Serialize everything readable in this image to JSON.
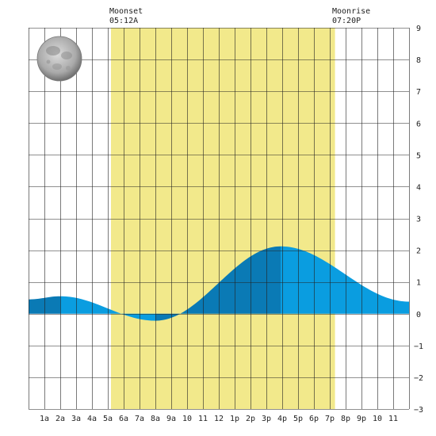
{
  "moon_events": {
    "moonset": {
      "label": "Moonset",
      "time": "05:12A",
      "hour": 5.2
    },
    "moonrise": {
      "label": "Moonrise",
      "time": "07:20P",
      "hour": 19.33
    }
  },
  "moon_phase_icon": "full-moon-icon",
  "colors": {
    "moon_window": "#f2e98b",
    "tide_light": "#0a9de0",
    "tide_dark": "#0a7ab5",
    "grid": "#222222",
    "axis_text": "#222222"
  },
  "chart_data": {
    "type": "area",
    "title": "",
    "xlabel": "",
    "ylabel": "",
    "xlim": [
      0,
      24
    ],
    "ylim": [
      -3,
      9
    ],
    "grid": true,
    "x_ticks": [
      {
        "hour": 1,
        "label": "1a"
      },
      {
        "hour": 2,
        "label": "2a"
      },
      {
        "hour": 3,
        "label": "3a"
      },
      {
        "hour": 4,
        "label": "4a"
      },
      {
        "hour": 5,
        "label": "5a"
      },
      {
        "hour": 6,
        "label": "6a"
      },
      {
        "hour": 7,
        "label": "7a"
      },
      {
        "hour": 8,
        "label": "8a"
      },
      {
        "hour": 9,
        "label": "9a"
      },
      {
        "hour": 10,
        "label": "10"
      },
      {
        "hour": 11,
        "label": "11"
      },
      {
        "hour": 12,
        "label": "12"
      },
      {
        "hour": 13,
        "label": "1p"
      },
      {
        "hour": 14,
        "label": "2p"
      },
      {
        "hour": 15,
        "label": "3p"
      },
      {
        "hour": 16,
        "label": "4p"
      },
      {
        "hour": 17,
        "label": "5p"
      },
      {
        "hour": 18,
        "label": "6p"
      },
      {
        "hour": 19,
        "label": "7p"
      },
      {
        "hour": 20,
        "label": "8p"
      },
      {
        "hour": 21,
        "label": "9p"
      },
      {
        "hour": 22,
        "label": "10"
      },
      {
        "hour": 23,
        "label": "11"
      }
    ],
    "y_ticks": [
      {
        "value": 9,
        "label": "9"
      },
      {
        "value": 8,
        "label": "8"
      },
      {
        "value": 7,
        "label": "7"
      },
      {
        "value": 6,
        "label": "6"
      },
      {
        "value": 5,
        "label": "5"
      },
      {
        "value": 4,
        "label": "4"
      },
      {
        "value": 3,
        "label": "3"
      },
      {
        "value": 2,
        "label": "2"
      },
      {
        "value": 1,
        "label": "1"
      },
      {
        "value": 0,
        "label": "0"
      },
      {
        "value": -1,
        "label": "−1"
      },
      {
        "value": -2,
        "label": "−2"
      },
      {
        "value": -3,
        "label": "−3"
      }
    ],
    "tide_extremes": [
      {
        "hour": 0,
        "height": 0.45
      },
      {
        "hour": 2.0,
        "height": 0.55
      },
      {
        "hour": 8.0,
        "height": -0.22
      },
      {
        "hour": 15.9,
        "height": 2.12
      },
      {
        "hour": 24.0,
        "height": 0.38
      }
    ],
    "shading_boundaries": [
      2.0,
      8.0,
      15.9
    ]
  }
}
